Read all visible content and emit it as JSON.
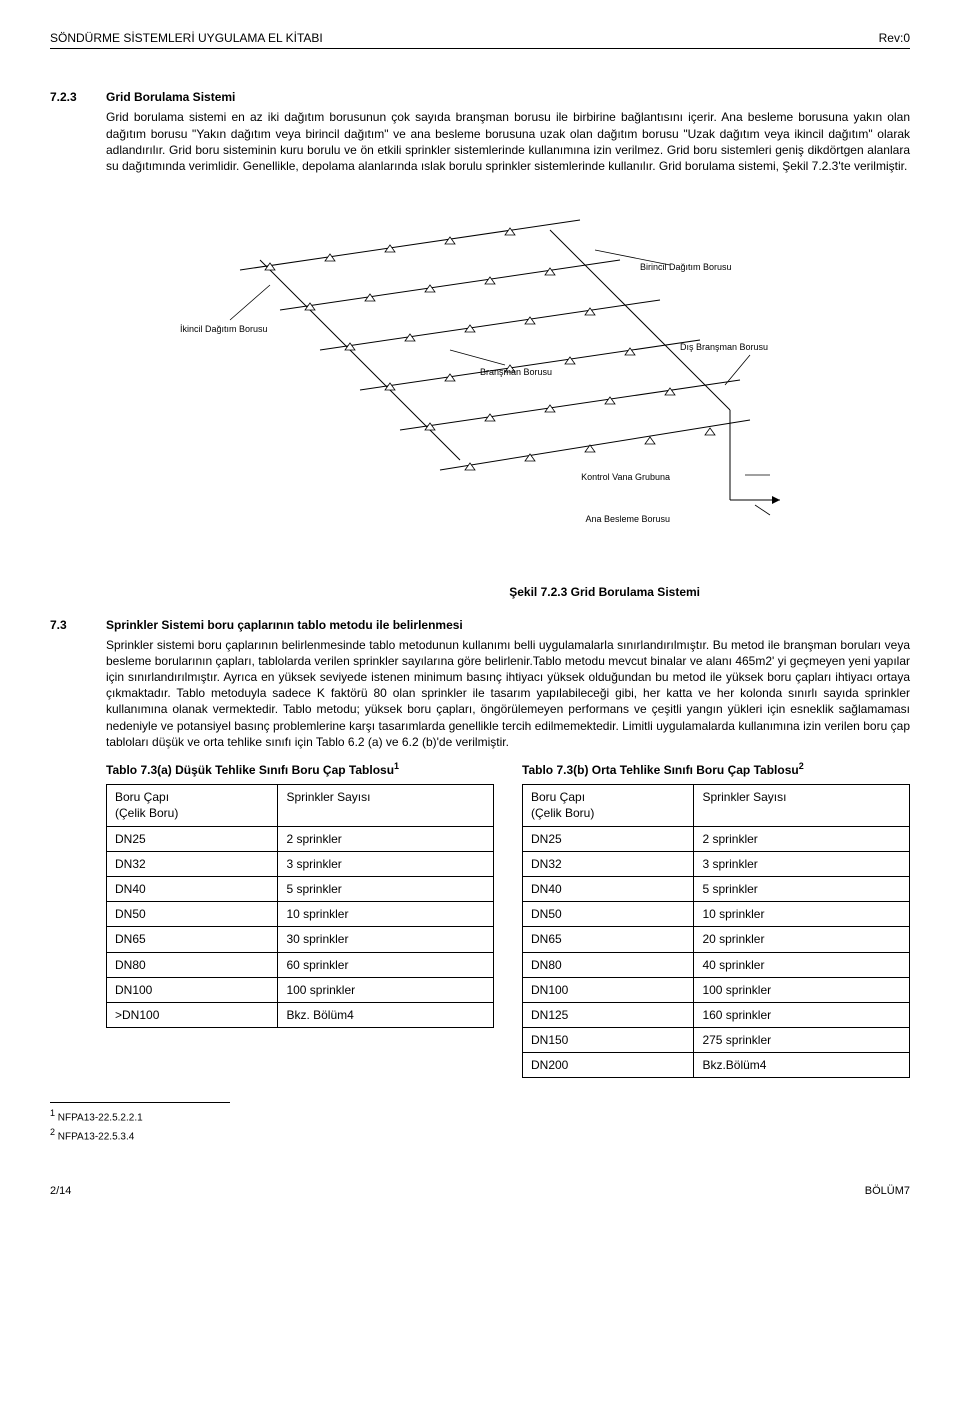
{
  "header": {
    "left": "SÖNDÜRME SİSTEMLERİ UYGULAMA EL KİTABI",
    "right": "Rev:0"
  },
  "section1": {
    "num": "7.2.3",
    "title": "Grid Borulama Sistemi",
    "body": "Grid borulama sistemi en az iki dağıtım borusunun çok sayıda branşman borusu ile birbirine bağlantısını içerir. Ana besleme borusuna yakın olan dağıtım borusu \"Yakın dağıtım veya birincil dağıtım\" ve ana besleme borusuna uzak olan dağıtım borusu \"Uzak dağıtım veya ikincil dağıtım\" olarak adlandırılır. Grid boru sisteminin kuru borulu ve ön etkili sprinkler sistemlerinde kullanımına izin verilmez. Grid boru sistemleri geniş dikdörtgen alanlara su dağıtımında verimlidir. Genellikle, depolama alanlarında ıslak borulu sprinkler sistemlerinde kullanılır. Grid borulama sistemi, Şekil 7.2.3'te verilmiştir."
  },
  "figure": {
    "caption": "Şekil 7.2.3 Grid Borulama Sistemi",
    "labels": {
      "ikincil": "İkincil Dağıtım Borusu",
      "birincil": "Birincil Dağıtım Borusu",
      "bransman": "Branşman Borusu",
      "dis_bransman": "Dış Branşman Borusu",
      "kontrol": "Kontrol Vana Grubuna",
      "ana": "Ana Besleme Borusu"
    },
    "styling": {
      "line_color": "#000000",
      "sprinkler_marker": "triangle-up",
      "marker_size": 5,
      "background": "#ffffff"
    }
  },
  "section2": {
    "num": "7.3",
    "title": "Sprinkler Sistemi boru çaplarının tablo metodu ile belirlenmesi",
    "body": "Sprinkler sistemi boru çaplarının belirlenmesinde tablo metodunun kullanımı belli uygulamalarla sınırlandırılmıştır. Bu metod ile branşman boruları veya besleme borularının çapları, tablolarda verilen sprinkler sayılarına göre belirlenir.Tablo metodu mevcut binalar ve alanı 465m2' yi geçmeyen yeni yapılar için sınırlandırılmıştır. Ayrıca en yüksek seviyede istenen minimum basınç ihtiyacı yüksek olduğundan bu metod ile yüksek boru çapları ihtiyacı ortaya çıkmaktadır. Tablo metoduyla sadece K faktörü 80 olan sprinkler ile tasarım yapılabileceği gibi, her katta ve her kolonda sınırlı sayıda sprinkler kullanımına olanak vermektedir. Tablo metodu; yüksek boru çapları, öngörülemeyen performans ve çeşitli yangın yükleri için esneklik sağlamaması nedeniyle ve potansiyel basınç problemlerine karşı tasarımlarda genellikle tercih edilmemektedir. Limitli uygulamalarda kullanımına izin verilen boru çap tabloları düşük ve orta tehlike sınıfı için Tablo 6.2 (a) ve 6.2 (b)'de verilmiştir."
  },
  "tableA": {
    "title": "Tablo 7.3(a) Düşük Tehlike Sınıfı Boru Çap Tablosu",
    "sup": "1",
    "col1_header1": "Boru Çapı",
    "col1_header2": "(Çelik Boru)",
    "col2_header": "Sprinkler Sayısı",
    "rows": [
      [
        "DN25",
        "2 sprinkler"
      ],
      [
        "DN32",
        "3 sprinkler"
      ],
      [
        "DN40",
        "5 sprinkler"
      ],
      [
        "DN50",
        "10 sprinkler"
      ],
      [
        "DN65",
        "30 sprinkler"
      ],
      [
        "DN80",
        "60 sprinkler"
      ],
      [
        "DN100",
        "100 sprinkler"
      ],
      [
        ">DN100",
        "Bkz. Bölüm4"
      ]
    ]
  },
  "tableB": {
    "title": "Tablo 7.3(b) Orta Tehlike Sınıfı Boru Çap Tablosu",
    "sup": "2",
    "col1_header1": "Boru Çapı",
    "col1_header2": "(Çelik Boru)",
    "col2_header": "Sprinkler Sayısı",
    "rows": [
      [
        "DN25",
        "2 sprinkler"
      ],
      [
        "DN32",
        "3 sprinkler"
      ],
      [
        "DN40",
        "5 sprinkler"
      ],
      [
        "DN50",
        "10 sprinkler"
      ],
      [
        "DN65",
        "20 sprinkler"
      ],
      [
        "DN80",
        "40 sprinkler"
      ],
      [
        "DN100",
        "100 sprinkler"
      ],
      [
        "DN125",
        "160 sprinkler"
      ],
      [
        "DN150",
        "275 sprinkler"
      ],
      [
        "DN200",
        "Bkz.Bölüm4"
      ]
    ]
  },
  "footnotes": {
    "f1_num": "1",
    "f1_text": " NFPA13-22.5.2.2.1",
    "f2_num": "2",
    "f2_text": " NFPA13-22.5.3.4"
  },
  "footer": {
    "page": "2/14",
    "section": "BÖLÜM7"
  }
}
